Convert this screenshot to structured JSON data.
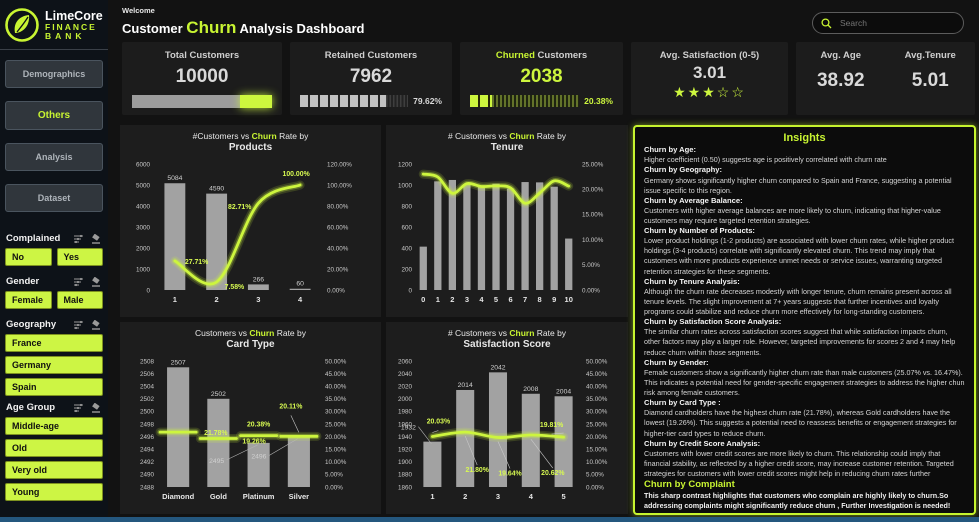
{
  "brand": {
    "name": "LimeCore",
    "line1": "FINANCE",
    "line2": "BANK"
  },
  "header": {
    "welcome": "Welcome",
    "title_prefix": "Customer ",
    "title_highlight": "Churn",
    "title_suffix": " Analysis Dashboard",
    "search_placeholder": "Search"
  },
  "sidebar": {
    "nav": [
      {
        "label": "Demographics",
        "active": false
      },
      {
        "label": "Others",
        "active": true
      },
      {
        "label": "Analysis",
        "active": false
      },
      {
        "label": "Dataset",
        "active": false
      }
    ]
  },
  "filters": [
    {
      "label": "Complained",
      "layout": "row",
      "options": [
        "No",
        "Yes"
      ]
    },
    {
      "label": "Gender",
      "layout": "row",
      "options": [
        "Female",
        "Male"
      ]
    },
    {
      "label": "Geography",
      "layout": "stack",
      "options": [
        "France",
        "Germany",
        "Spain"
      ]
    },
    {
      "label": "Age Group",
      "layout": "stack",
      "options": [
        "Middle-age",
        "Old",
        "Very old",
        "Young"
      ]
    }
  ],
  "kpis": {
    "total": {
      "label": "Total Customers",
      "value": "10000"
    },
    "retained": {
      "label": "Retained Customers",
      "value": "7962",
      "pct": "79.62%",
      "pct_value": 79.62
    },
    "churned": {
      "label_highlight": "Churned",
      "label_rest": " Customers",
      "value": "2038",
      "pct": "20.38%",
      "pct_value": 20.38
    },
    "satisfaction": {
      "label": "Avg. Satisfaction (0-5)",
      "value": "3.01",
      "stars_filled": 3,
      "stars_total": 5
    },
    "age": {
      "label": "Avg. Age",
      "value": "38.92"
    },
    "tenure": {
      "label": "Avg.Tenure",
      "value": "5.01"
    }
  },
  "colors": {
    "accent": "#c8f432",
    "bar_gray": "#a2a2a2",
    "line_lime": "#cdf53e",
    "footer_blue": "#24577e"
  },
  "chart_data": [
    {
      "name": "products",
      "type": "bar+line",
      "title_prefix": "#Customers vs ",
      "title_highlight": "Churn",
      "title_suffix": " Rate by",
      "subtitle": "Products",
      "categories": [
        "1",
        "2",
        "3",
        "4"
      ],
      "bars": [
        5084,
        4590,
        266,
        60
      ],
      "bar_labels": [
        "5084",
        "4590",
        "266",
        "60"
      ],
      "line": [
        27.71,
        7.58,
        82.71,
        100.0
      ],
      "line_labels": [
        "27.71%",
        "7.58%",
        "82.71%",
        "100.00%"
      ],
      "left_axis": {
        "min": 0,
        "max": 6000,
        "step": 1000
      },
      "right_axis": {
        "min": 0,
        "max": 120,
        "step": 20
      },
      "layout": {
        "smooth": true,
        "line_mode": "line",
        "bar_ratio": 0.5,
        "ml": 32,
        "mr": 58,
        "line_label_offsets": [
          [
            10,
            3,
            "start",
            false
          ],
          [
            8,
            7,
            "start",
            false
          ],
          [
            -7,
            6,
            "end",
            false
          ],
          [
            -4,
            -9,
            "middle",
            false
          ]
        ],
        "bar_label_offsets": [
          null,
          null,
          null,
          null
        ]
      }
    },
    {
      "name": "tenure",
      "type": "bar+line",
      "title_prefix": "# Customers vs ",
      "title_highlight": "Churn",
      "title_suffix": " Rate by",
      "subtitle": "Tenure",
      "categories": [
        "0",
        "1",
        "2",
        "3",
        "4",
        "5",
        "6",
        "7",
        "8",
        "9",
        "10"
      ],
      "bars": [
        413,
        1035,
        1048,
        1009,
        989,
        1012,
        967,
        1028,
        1025,
        984,
        490
      ],
      "bar_labels": null,
      "line": [
        23.0,
        22.42,
        19.18,
        21.11,
        20.53,
        20.65,
        20.27,
        17.22,
        19.22,
        21.65,
        20.61
      ],
      "line_labels": null,
      "left_axis": {
        "min": 0,
        "max": 1200,
        "step": 200
      },
      "right_axis": {
        "min": 0,
        "max": 25,
        "step": 5
      },
      "layout": {
        "smooth": true,
        "line_mode": "line",
        "bar_ratio": 0.5,
        "ml": 28,
        "mr": 50,
        "line_label_offsets": [],
        "bar_label_offsets": []
      }
    },
    {
      "name": "cardtype",
      "type": "bar+line",
      "title_prefix": "Customers vs ",
      "title_highlight": "Churn",
      "title_suffix": " Rate by",
      "subtitle": "Card Type",
      "categories": [
        "Diamond",
        "Gold",
        "Platinum",
        "Silver"
      ],
      "bars": [
        2507,
        2502,
        2495,
        2496
      ],
      "bar_labels": [
        "2507",
        "2502",
        "2495",
        "2496"
      ],
      "line": [
        21.78,
        19.26,
        20.38,
        20.11
      ],
      "line_labels": [
        "21.78%",
        "19.26%",
        "20.38%",
        "20.11%"
      ],
      "left_axis": {
        "min": 2488,
        "max": 2508,
        "step": 2
      },
      "right_axis": {
        "min": 0,
        "max": 50,
        "step": 5
      },
      "layout": {
        "smooth": false,
        "line_mode": "dash",
        "bar_ratio": 0.55,
        "ml": 36,
        "mr": 60,
        "line_label_offsets": [
          [
            26,
            3,
            "start",
            false
          ],
          [
            24,
            5,
            "start",
            false
          ],
          [
            0,
            -9,
            "middle",
            false
          ],
          [
            -8,
            -28,
            "middle",
            true
          ]
        ],
        "bar_label_offsets": [
          null,
          null,
          [
            -42,
            20,
            "middle",
            true
          ],
          [
            -40,
            22,
            "middle",
            true
          ]
        ]
      }
    },
    {
      "name": "satisfaction",
      "type": "bar+line",
      "title_prefix": "# Customers vs ",
      "title_highlight": "Churn",
      "title_suffix": " Rate by",
      "subtitle": "Satisfaction Score",
      "categories": [
        "1",
        "2",
        "3",
        "4",
        "5"
      ],
      "bars": [
        1932,
        2014,
        2042,
        2008,
        2004
      ],
      "bar_labels": [
        "1932",
        "2014",
        "2042",
        "2008",
        "2004"
      ],
      "line": [
        20.03,
        21.8,
        19.64,
        20.62,
        19.81
      ],
      "line_labels": [
        "20.03%",
        "21.80%",
        "19.64%",
        "20.62%",
        "19.81%"
      ],
      "left_axis": {
        "min": 1860,
        "max": 2060,
        "step": 20
      },
      "right_axis": {
        "min": 0,
        "max": 50,
        "step": 5
      },
      "layout": {
        "smooth": true,
        "line_mode": "line",
        "bar_ratio": 0.55,
        "ml": 28,
        "mr": 46,
        "line_label_offsets": [
          [
            6,
            -13,
            "middle",
            true
          ],
          [
            12,
            40,
            "middle",
            true
          ],
          [
            12,
            38,
            "middle",
            true
          ],
          [
            22,
            40,
            "middle",
            true
          ],
          [
            -12,
            -10,
            "middle",
            true
          ]
        ],
        "bar_label_offsets": [
          [
            -24,
            -12,
            "middle",
            true
          ],
          null,
          null,
          null,
          null
        ]
      }
    }
  ],
  "insights": {
    "title": "Insights",
    "items": [
      {
        "heading": "Churn by Age:",
        "body": "Higher coefficient (0.50) suggests age is positively correlated with churn rate",
        "accent": false
      },
      {
        "heading": "Churn by Geography:",
        "body": "Germany shows significantly higher churn compared to Spain and France, suggesting a potential issue specific to this region.",
        "accent": false
      },
      {
        "heading": "Churn by Average Balance:",
        "body": "Customers with higher average balances are more likely to churn, indicating that higher-value customers may require targeted retention strategies.",
        "accent": false
      },
      {
        "heading": "Churn by Number of Products:",
        "body": "Lower product holdings (1-2 products) are associated with lower churn rates, while higher product holdings (3-4 products) correlate with significantly elevated churn. This trend may imply that customers with more products experience unmet needs or service issues, warranting targeted retention strategies for these segments.",
        "accent": false
      },
      {
        "heading": "Churn by Tenure Analysis:",
        "body": "Although the churn rate decreases modestly with longer tenure, churn remains present across all tenure levels. The slight improvement at 7+ years suggests that further incentives and loyalty programs could stabilize and reduce churn more effectively for long-standing customers.",
        "accent": false
      },
      {
        "heading": "Churn by Satisfaction Score Analysis:",
        "body": "The similar churn rates across satisfaction scores suggest that while satisfaction impacts churn, other factors may play a larger role. However, targeted improvements for scores 2 and 4 may help reduce churn within those segments.",
        "accent": false
      },
      {
        "heading": "Churn by Gender:",
        "body": "Female customers show a significantly higher churn rate than male customers (25.07% vs. 16.47%). This indicates a potential need for gender-specific engagement strategies to address the higher chun risk among female customers.",
        "accent": false
      },
      {
        "heading": "Churn by Card Type :",
        "body": "Diamond cardholders have the highest churn rate (21.78%), whereas Gold cardholders have the lowest (19.26%). This suggests a potential need to reassess benefits or engagement strategies for higher-tier card types to reduce churn.",
        "accent": false
      },
      {
        "heading": "Churn by Credit Score Analysis:",
        "body": "Customers with lower credit scores are more likely to churn. This relationship could imply that financial stability, as reflected by a higher credit score, may increase customer retention. Targeted strategies for customers with lower credit scores might help in reducing churn rates further",
        "accent": false
      },
      {
        "heading": "Churn by Complaint",
        "body": "This sharp contrast highlights that customers who complain are highly likely to churn.So addressing complaints might significantly reduce churn , Further Investigation  is needed!",
        "accent": true
      }
    ]
  }
}
